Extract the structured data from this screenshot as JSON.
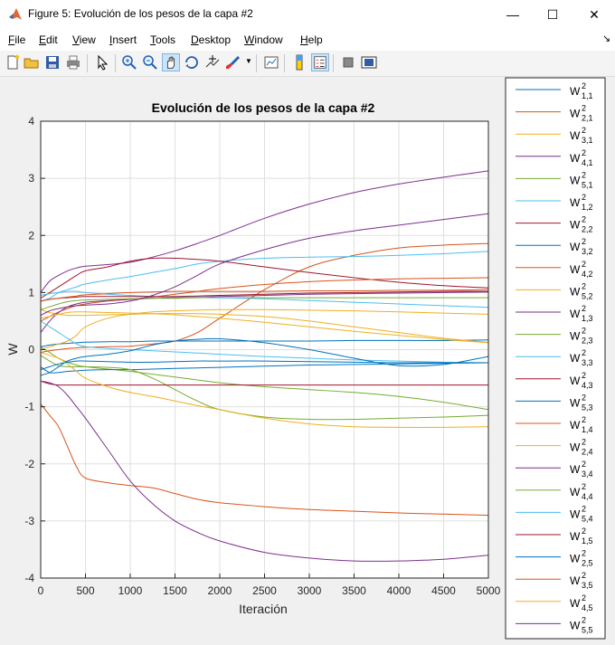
{
  "window": {
    "title": "Figure 5: Evolución de los pesos de la capa #2"
  },
  "menu": {
    "items": [
      {
        "key": "F",
        "rest": "ile"
      },
      {
        "key": "E",
        "rest": "dit"
      },
      {
        "key": "V",
        "rest": "iew"
      },
      {
        "key": "I",
        "rest": "nsert"
      },
      {
        "key": "T",
        "rest": "ools"
      },
      {
        "key": "D",
        "rest": "esktop"
      },
      {
        "key": "W",
        "rest": "indow"
      },
      {
        "key": "H",
        "rest": "elp"
      }
    ]
  },
  "toolbar": {
    "icons": [
      "new-figure-icon",
      "open-file-icon",
      "save-icon",
      "print-icon",
      "pointer-icon",
      "zoom-in-icon",
      "zoom-out-icon",
      "pan-icon",
      "rotate-3d-icon",
      "data-cursor-icon",
      "brush-icon",
      "link-plot-icon",
      "insert-colorbar-icon",
      "insert-legend-icon",
      "hide-plot-tools-icon",
      "show-plot-tools-icon"
    ]
  },
  "chart_data": {
    "type": "line",
    "title": "Evolución de los pesos de la capa #2",
    "xlabel": "Iteración",
    "ylabel": "W",
    "xlim": [
      0,
      5000
    ],
    "ylim": [
      -4,
      4
    ],
    "xticks": [
      0,
      500,
      1000,
      1500,
      2000,
      2500,
      3000,
      3500,
      4000,
      4500,
      5000
    ],
    "yticks": [
      -4,
      -3,
      -2,
      -1,
      0,
      1,
      2,
      3,
      4
    ],
    "grid": true,
    "legend_placement": "outside-right",
    "x": [
      0,
      100,
      200,
      300,
      400,
      500,
      750,
      1000,
      1250,
      1500,
      1750,
      2000,
      2500,
      3000,
      3500,
      4000,
      4500,
      5000
    ],
    "series": [
      {
        "base": "W",
        "sup": "2",
        "sub": "1,1",
        "color": "#0072bd",
        "values": [
          0.05,
          0.08,
          0.1,
          0.11,
          0.12,
          0.13,
          0.14,
          0.14,
          0.15,
          0.15,
          0.15,
          0.15,
          0.15,
          0.15,
          0.16,
          0.16,
          0.16,
          0.17
        ]
      },
      {
        "base": "W",
        "sup": "2",
        "sub": "2,1",
        "color": "#d95319",
        "values": [
          -0.05,
          -0.02,
          0.0,
          0.02,
          0.03,
          0.04,
          0.05,
          0.06,
          0.1,
          0.15,
          0.3,
          0.55,
          1.05,
          1.45,
          1.65,
          1.78,
          1.83,
          1.86
        ]
      },
      {
        "base": "W",
        "sup": "2",
        "sub": "3,1",
        "color": "#edb120",
        "values": [
          0.7,
          0.65,
          0.62,
          0.6,
          0.6,
          0.6,
          0.61,
          0.62,
          0.63,
          0.63,
          0.63,
          0.62,
          0.58,
          0.5,
          0.4,
          0.3,
          0.2,
          0.13
        ]
      },
      {
        "base": "W",
        "sup": "2",
        "sub": "4,1",
        "color": "#7e2f8e",
        "values": [
          1.0,
          1.2,
          1.3,
          1.38,
          1.43,
          1.46,
          1.49,
          1.53,
          1.62,
          1.73,
          1.86,
          2.0,
          2.3,
          2.55,
          2.75,
          2.9,
          3.02,
          3.13
        ]
      },
      {
        "base": "W",
        "sup": "2",
        "sub": "5,1",
        "color": "#77ac30",
        "values": [
          0.05,
          -0.05,
          -0.15,
          -0.22,
          -0.27,
          -0.3,
          -0.34,
          -0.38,
          -0.43,
          -0.48,
          -0.53,
          -0.58,
          -0.65,
          -0.7,
          -0.75,
          -0.82,
          -0.92,
          -1.05
        ]
      },
      {
        "base": "W",
        "sup": "2",
        "sub": "1,2",
        "color": "#4dbeee",
        "values": [
          0.85,
          0.9,
          1.0,
          1.05,
          1.1,
          1.15,
          1.22,
          1.28,
          1.35,
          1.42,
          1.5,
          1.55,
          1.6,
          1.62,
          1.63,
          1.65,
          1.68,
          1.72
        ]
      },
      {
        "base": "W",
        "sup": "2",
        "sub": "2,2",
        "color": "#a2142f",
        "values": [
          0.9,
          1.0,
          1.1,
          1.2,
          1.3,
          1.38,
          1.45,
          1.55,
          1.6,
          1.6,
          1.58,
          1.55,
          1.45,
          1.35,
          1.26,
          1.18,
          1.12,
          1.08
        ]
      },
      {
        "base": "W",
        "sup": "2",
        "sub": "3,2",
        "color": "#0072bd",
        "values": [
          -0.3,
          -0.4,
          -0.4,
          -0.38,
          -0.37,
          -0.36,
          -0.35,
          -0.35,
          -0.34,
          -0.33,
          -0.32,
          -0.31,
          -0.29,
          -0.27,
          -0.26,
          -0.25,
          -0.24,
          -0.23
        ]
      },
      {
        "base": "W",
        "sup": "2",
        "sub": "4,2",
        "color": "#d95319",
        "values": [
          0.5,
          0.58,
          0.66,
          0.72,
          0.77,
          0.8,
          0.85,
          0.88,
          0.92,
          0.97,
          1.02,
          1.07,
          1.14,
          1.19,
          1.22,
          1.24,
          1.25,
          1.26
        ]
      },
      {
        "base": "W",
        "sup": "2",
        "sub": "5,2",
        "color": "#edb120",
        "values": [
          0.0,
          0.05,
          0.1,
          0.15,
          0.25,
          0.4,
          0.55,
          0.62,
          0.66,
          0.68,
          0.69,
          0.7,
          0.7,
          0.69,
          0.68,
          0.66,
          0.64,
          0.62
        ]
      },
      {
        "base": "W",
        "sup": "2",
        "sub": "1,3",
        "color": "#7e2f8e",
        "values": [
          0.3,
          0.5,
          0.65,
          0.75,
          0.8,
          0.83,
          0.86,
          0.88,
          0.9,
          0.91,
          0.92,
          0.93,
          0.95,
          0.97,
          0.98,
          0.99,
          1.0,
          1.01
        ]
      },
      {
        "base": "W",
        "sup": "2",
        "sub": "2,3",
        "color": "#77ac30",
        "values": [
          -0.1,
          -0.2,
          -0.28,
          -0.3,
          -0.3,
          -0.3,
          -0.31,
          -0.35,
          -0.5,
          -0.7,
          -0.9,
          -1.05,
          -1.18,
          -1.22,
          -1.22,
          -1.2,
          -1.18,
          -1.15
        ]
      },
      {
        "base": "W",
        "sup": "2",
        "sub": "3,3",
        "color": "#4dbeee",
        "values": [
          0.5,
          0.4,
          0.3,
          0.2,
          0.1,
          0.05,
          0.02,
          0.0,
          -0.02,
          -0.04,
          -0.06,
          -0.08,
          -0.12,
          -0.15,
          -0.18,
          -0.2,
          -0.22,
          -0.23
        ]
      },
      {
        "base": "W",
        "sup": "2",
        "sub": "4,3",
        "color": "#a2142f",
        "values": [
          -0.55,
          -0.6,
          -0.62,
          -0.62,
          -0.62,
          -0.62,
          -0.62,
          -0.62,
          -0.62,
          -0.62,
          -0.62,
          -0.62,
          -0.62,
          -0.62,
          -0.62,
          -0.62,
          -0.62,
          -0.62
        ]
      },
      {
        "base": "W",
        "sup": "2",
        "sub": "5,3",
        "color": "#0072bd",
        "values": [
          -0.45,
          -0.4,
          -0.3,
          -0.2,
          -0.15,
          -0.12,
          -0.08,
          -0.02,
          0.08,
          0.15,
          0.18,
          0.19,
          0.12,
          0.0,
          -0.15,
          -0.28,
          -0.26,
          -0.12
        ]
      },
      {
        "base": "W",
        "sup": "2",
        "sub": "1,4",
        "color": "#d95319",
        "values": [
          -0.95,
          -1.15,
          -1.35,
          -1.7,
          -2.05,
          -2.25,
          -2.33,
          -2.38,
          -2.42,
          -2.52,
          -2.62,
          -2.68,
          -2.75,
          -2.8,
          -2.83,
          -2.86,
          -2.88,
          -2.9
        ]
      },
      {
        "base": "W",
        "sup": "2",
        "sub": "2,4",
        "color": "#edb120",
        "values": [
          -0.05,
          -0.1,
          -0.15,
          -0.25,
          -0.38,
          -0.5,
          -0.65,
          -0.75,
          -0.82,
          -0.9,
          -0.98,
          -1.05,
          -1.2,
          -1.3,
          -1.35,
          -1.36,
          -1.36,
          -1.35
        ]
      },
      {
        "base": "W",
        "sup": "2",
        "sub": "3,4",
        "color": "#7e2f8e",
        "values": [
          -0.55,
          -0.58,
          -0.65,
          -0.8,
          -1.0,
          -1.2,
          -1.75,
          -2.3,
          -2.7,
          -3.0,
          -3.2,
          -3.35,
          -3.55,
          -3.65,
          -3.7,
          -3.7,
          -3.67,
          -3.6
        ]
      },
      {
        "base": "W",
        "sup": "2",
        "sub": "4,4",
        "color": "#77ac30",
        "values": [
          0.7,
          0.75,
          0.8,
          0.84,
          0.86,
          0.87,
          0.88,
          0.89,
          0.9,
          0.9,
          0.91,
          0.91,
          0.91,
          0.91,
          0.91,
          0.91,
          0.91,
          0.91
        ]
      },
      {
        "base": "W",
        "sup": "2",
        "sub": "5,4",
        "color": "#4dbeee",
        "values": [
          0.95,
          0.98,
          1.0,
          1.02,
          1.02,
          1.0,
          0.97,
          0.95,
          0.93,
          0.92,
          0.92,
          0.91,
          0.89,
          0.86,
          0.83,
          0.8,
          0.77,
          0.74
        ]
      },
      {
        "base": "W",
        "sup": "2",
        "sub": "1,5",
        "color": "#a2142f",
        "values": [
          0.85,
          0.88,
          0.9,
          0.91,
          0.92,
          0.93,
          0.93,
          0.93,
          0.93,
          0.93,
          0.94,
          0.95,
          0.97,
          0.99,
          1.0,
          1.01,
          1.02,
          1.02
        ]
      },
      {
        "base": "W",
        "sup": "2",
        "sub": "2,5",
        "color": "#0072bd",
        "values": [
          -0.35,
          -0.3,
          -0.25,
          -0.22,
          -0.2,
          -0.2,
          -0.21,
          -0.22,
          -0.22,
          -0.21,
          -0.2,
          -0.2,
          -0.2,
          -0.21,
          -0.22,
          -0.23,
          -0.23,
          -0.23
        ]
      },
      {
        "base": "W",
        "sup": "2",
        "sub": "3,5",
        "color": "#d95319",
        "values": [
          0.85,
          0.88,
          0.9,
          0.92,
          0.94,
          0.96,
          0.98,
          1.0,
          1.01,
          1.02,
          1.02,
          1.02,
          1.02,
          1.03,
          1.03,
          1.04,
          1.04,
          1.05
        ]
      },
      {
        "base": "W",
        "sup": "2",
        "sub": "4,5",
        "color": "#edb120",
        "values": [
          0.55,
          0.58,
          0.62,
          0.65,
          0.66,
          0.66,
          0.65,
          0.64,
          0.63,
          0.61,
          0.58,
          0.55,
          0.48,
          0.4,
          0.32,
          0.25,
          0.18,
          0.12
        ]
      },
      {
        "base": "W",
        "sup": "2",
        "sub": "5,5",
        "color": "#7e2f8e",
        "values": [
          0.6,
          0.68,
          0.72,
          0.75,
          0.77,
          0.78,
          0.8,
          0.85,
          0.95,
          1.1,
          1.3,
          1.5,
          1.75,
          1.95,
          2.08,
          2.18,
          2.28,
          2.38
        ]
      }
    ]
  }
}
